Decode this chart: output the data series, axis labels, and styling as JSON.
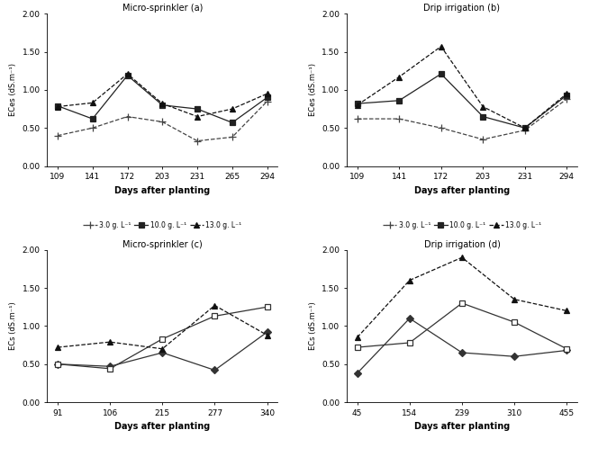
{
  "subplot_a": {
    "title": "Micro-sprinkler (a)",
    "x": [
      109,
      141,
      172,
      203,
      231,
      265,
      294
    ],
    "ylabel": "ECes (dS.m⁻¹)",
    "xlabel": "Days after planting",
    "ylim": [
      0.0,
      2.0
    ],
    "yticks": [
      0.0,
      0.5,
      1.0,
      1.5,
      2.0
    ],
    "series": [
      {
        "label": "3.0 g. L⁻¹",
        "y": [
          0.4,
          0.5,
          0.65,
          0.58,
          0.33,
          0.38,
          0.85
        ],
        "marker": "+",
        "linestyle": "--",
        "color": "#444444",
        "filled": true,
        "ms": 6
      },
      {
        "label": "10.0 g. L⁻¹",
        "y": [
          0.79,
          0.62,
          1.19,
          0.8,
          0.75,
          0.57,
          0.9
        ],
        "marker": "s",
        "linestyle": "-",
        "color": "#222222",
        "filled": true,
        "ms": 4
      },
      {
        "label": "13.0 g. L⁻¹",
        "y": [
          0.78,
          0.83,
          1.21,
          0.82,
          0.65,
          0.75,
          0.95
        ],
        "marker": "^",
        "linestyle": "--",
        "color": "#111111",
        "filled": true,
        "ms": 5
      }
    ]
  },
  "subplot_b": {
    "title": "Drip irrigation (b)",
    "x": [
      109,
      141,
      172,
      203,
      231,
      294
    ],
    "ylabel": "ECes (dS.m⁻¹)",
    "xlabel": "Days after planting",
    "ylim": [
      0.0,
      2.0
    ],
    "yticks": [
      0.0,
      0.5,
      1.0,
      1.5,
      2.0
    ],
    "series": [
      {
        "label": "3.0 g. L⁻¹",
        "y": [
          0.62,
          0.62,
          0.5,
          0.35,
          0.47,
          0.88
        ],
        "marker": "+",
        "linestyle": "--",
        "color": "#444444",
        "filled": true,
        "ms": 6
      },
      {
        "label": "10.0 g. L⁻¹",
        "y": [
          0.82,
          0.86,
          1.21,
          0.65,
          0.5,
          0.93
        ],
        "marker": "s",
        "linestyle": "-",
        "color": "#222222",
        "filled": true,
        "ms": 4
      },
      {
        "label": "13.0 g. L⁻¹",
        "y": [
          0.8,
          1.17,
          1.57,
          0.78,
          0.5,
          0.95
        ],
        "marker": "^",
        "linestyle": "--",
        "color": "#111111",
        "filled": true,
        "ms": 5
      }
    ]
  },
  "subplot_c": {
    "title": "Micro-sprinkler (c)",
    "x": [
      91,
      106,
      215,
      277,
      340
    ],
    "x_labels": [
      "91",
      "106",
      "215",
      "277",
      "340"
    ],
    "ylabel": "ECs (dS.m⁻¹)",
    "xlabel": "Days after planting",
    "ylim": [
      0.0,
      2.0
    ],
    "yticks": [
      0.0,
      0.5,
      1.0,
      1.5,
      2.0
    ],
    "series": [
      {
        "label": "3.0 g. L-1",
        "y": [
          0.5,
          0.47,
          0.65,
          0.42,
          0.92
        ],
        "marker": "D",
        "linestyle": "-",
        "color": "#333333",
        "filled": true,
        "ms": 4
      },
      {
        "label": "10.0 g. L-1",
        "y": [
          0.5,
          0.44,
          0.83,
          1.13,
          1.25
        ],
        "marker": "s",
        "linestyle": "-",
        "color": "#333333",
        "filled": false,
        "ms": 4
      },
      {
        "label": "13.0 g. L-1",
        "y": [
          0.72,
          0.79,
          0.7,
          1.27,
          0.88
        ],
        "marker": "^",
        "linestyle": "--",
        "color": "#111111",
        "filled": true,
        "ms": 5
      }
    ]
  },
  "subplot_d": {
    "title": "Drip irrigation (d)",
    "x": [
      45,
      154,
      239,
      310,
      455
    ],
    "x_labels": [
      "45",
      "154",
      "239",
      "310",
      "455"
    ],
    "ylabel": "ECs (dS.m⁻¹)",
    "xlabel": "Days after planting",
    "ylim": [
      0.0,
      2.0
    ],
    "yticks": [
      0.0,
      0.5,
      1.0,
      1.5,
      2.0
    ],
    "series": [
      {
        "label": "3.0 g. L⁻¹",
        "y": [
          0.38,
          1.1,
          0.65,
          0.6,
          0.68
        ],
        "marker": "D",
        "linestyle": "-",
        "color": "#333333",
        "filled": true,
        "ms": 4
      },
      {
        "label": "10.0 g. L⁻¹",
        "y": [
          0.72,
          0.78,
          1.3,
          1.05,
          0.7
        ],
        "marker": "s",
        "linestyle": "-",
        "color": "#333333",
        "filled": false,
        "ms": 4
      },
      {
        "label": "13.0 g. L⁻¹",
        "y": [
          0.85,
          1.6,
          1.9,
          1.35,
          1.2
        ],
        "marker": "^",
        "linestyle": "--",
        "color": "#111111",
        "filled": true,
        "ms": 5
      }
    ]
  }
}
